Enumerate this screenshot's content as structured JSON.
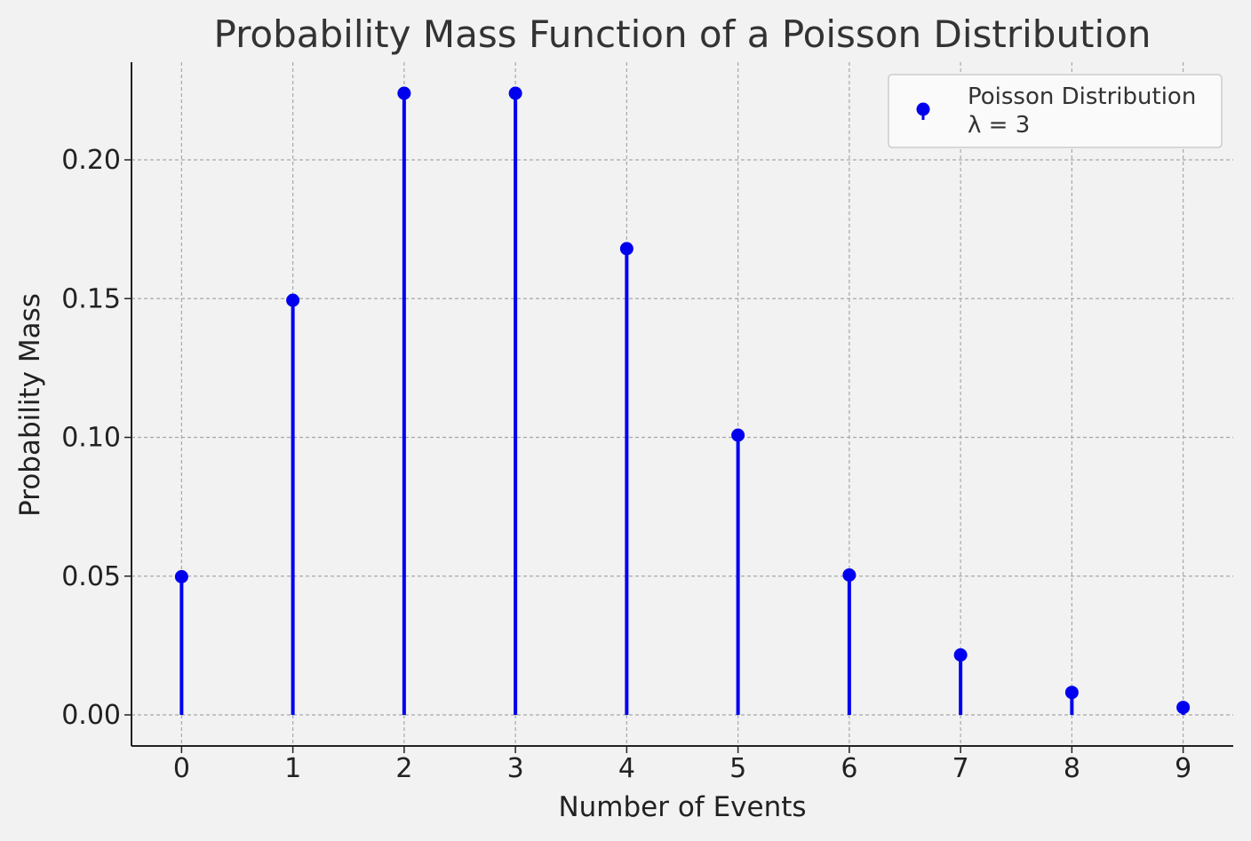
{
  "chart_data": {
    "type": "stem",
    "title": "Probability Mass Function of a Poisson Distribution",
    "xlabel": "Number of Events",
    "ylabel": "Probability Mass",
    "x": [
      0,
      1,
      2,
      3,
      4,
      5,
      6,
      7,
      8,
      9
    ],
    "x_tick_labels": [
      "0",
      "1",
      "2",
      "3",
      "4",
      "5",
      "6",
      "7",
      "8",
      "9"
    ],
    "y_tick_values": [
      0.0,
      0.05,
      0.1,
      0.15,
      0.2
    ],
    "y_tick_labels": [
      "0.00",
      "0.05",
      "0.10",
      "0.15",
      "0.20"
    ],
    "xlim": [
      -0.45,
      9.45
    ],
    "ylim": [
      -0.0112,
      0.2352
    ],
    "grid": true,
    "legend_position": "top-right",
    "series": [
      {
        "name": "Poisson Distribution",
        "name_line2": "λ = 3",
        "color": "#0000ee",
        "values": [
          0.0498,
          0.1494,
          0.224,
          0.224,
          0.168,
          0.1008,
          0.0504,
          0.0216,
          0.0081,
          0.0027
        ]
      }
    ]
  }
}
